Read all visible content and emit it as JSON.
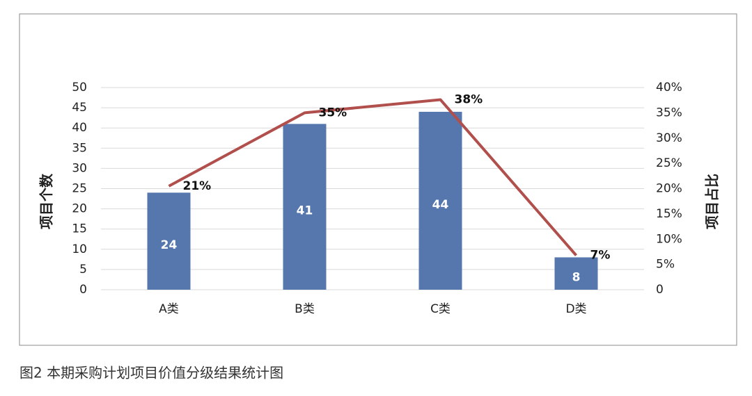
{
  "chart_data": {
    "type": "combo",
    "categories": [
      "A类",
      "B类",
      "C类",
      "D类"
    ],
    "ylabel": "项目个数",
    "y2label": "项目占比",
    "ylim": [
      0,
      50
    ],
    "yticks": [
      0,
      5,
      10,
      15,
      20,
      25,
      30,
      35,
      40,
      45,
      50
    ],
    "y2lim": [
      0,
      40
    ],
    "y2ticks": [
      0,
      {
        "value": 5,
        "label": "5%"
      },
      {
        "value": 10,
        "label": "10%"
      },
      {
        "value": 15,
        "label": "15%"
      },
      {
        "value": 20,
        "label": "20%"
      },
      {
        "value": 25,
        "label": "25%"
      },
      {
        "value": 30,
        "label": "30%"
      },
      {
        "value": 35,
        "label": "35%"
      },
      {
        "value": 40,
        "label": "40%"
      }
    ],
    "grid": true,
    "series": [
      {
        "type": "bar",
        "color": "#5577ae",
        "values": [
          24,
          41,
          44,
          8
        ]
      },
      {
        "type": "line",
        "axis": "y2",
        "color": "#b04f4c",
        "values": [
          20.5,
          35.0,
          37.6,
          6.8
        ],
        "value_labels": [
          "21%",
          "35%",
          "38%",
          "7%"
        ]
      }
    ]
  },
  "caption": "图2  本期采购计划项目价值分级结果统计图"
}
